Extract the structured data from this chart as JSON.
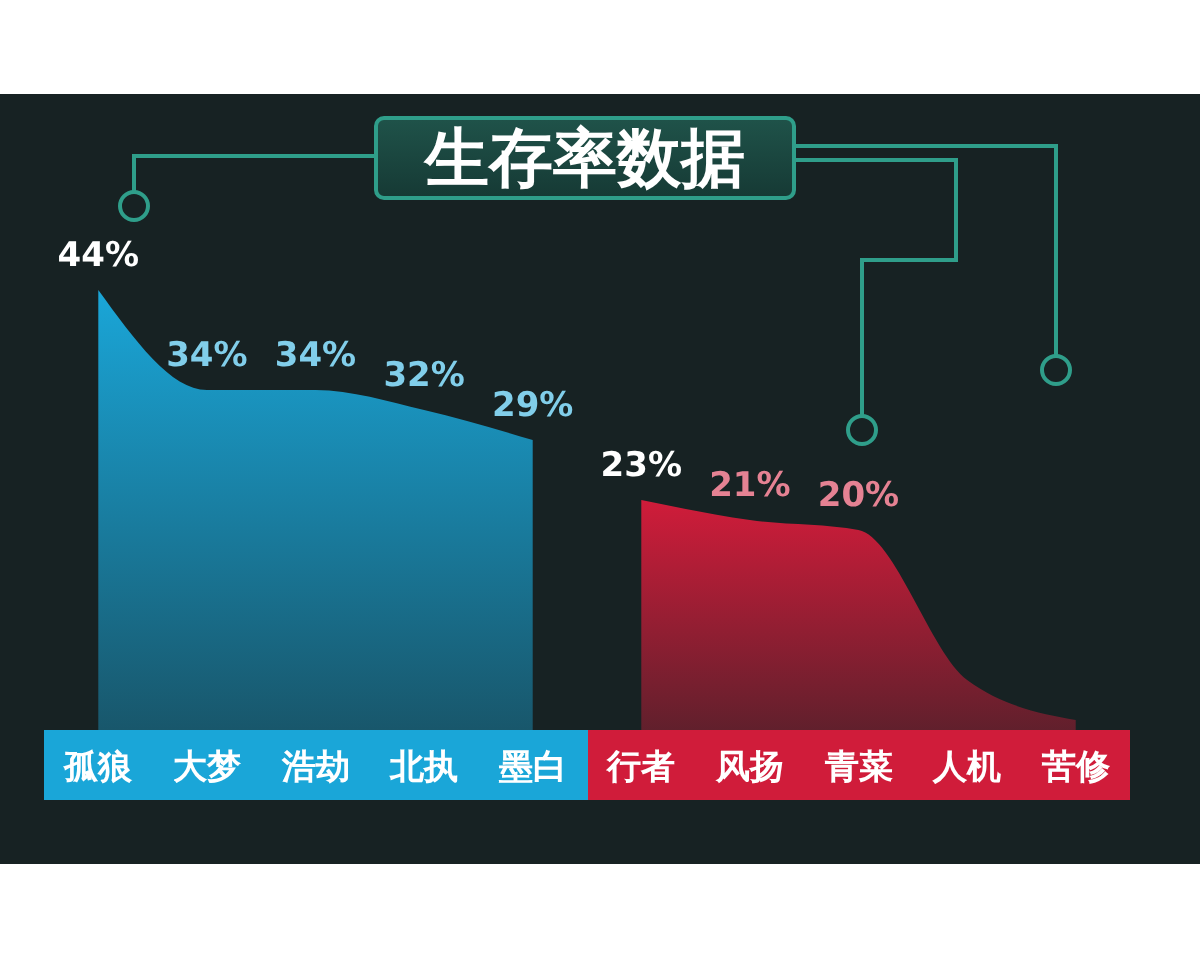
{
  "chart_data": {
    "type": "area",
    "title": "生存率数据",
    "categories": [
      "孤狼",
      "大梦",
      "浩劫",
      "北执",
      "墨白",
      "行者",
      "风扬",
      "青菜",
      "人机",
      "苦修"
    ],
    "series": [
      {
        "color": "#1aa6d8",
        "values": [
          44,
          34,
          34,
          32,
          29,
          null,
          null,
          null,
          null,
          null
        ],
        "value_labels": [
          "44%",
          "34%",
          "34%",
          "32%",
          "29%",
          null,
          null,
          null,
          null,
          null
        ]
      },
      {
        "color": "#d01c3a",
        "values": [
          null,
          null,
          null,
          null,
          null,
          23,
          21,
          20,
          5,
          1
        ],
        "value_labels": [
          null,
          null,
          null,
          null,
          null,
          "23%",
          "21%",
          "20%",
          null,
          null
        ]
      }
    ]
  }
}
